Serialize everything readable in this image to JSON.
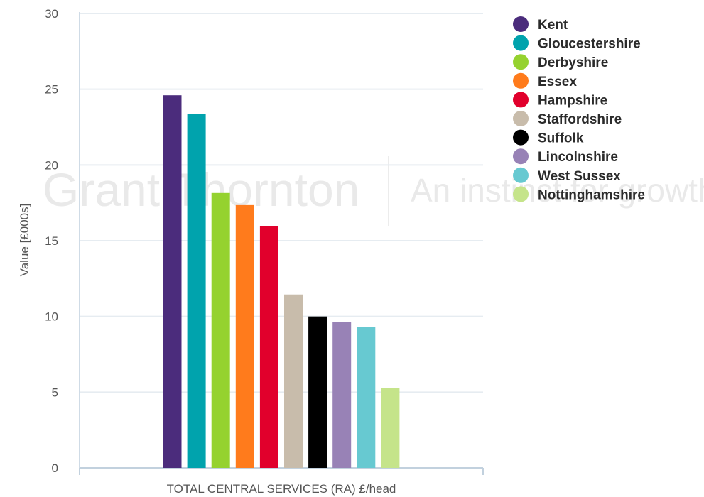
{
  "watermark": {
    "brand": "Grant Thornton",
    "tagline": "An instinct for growth"
  },
  "chart_data": {
    "type": "bar",
    "title": "",
    "xlabel": "TOTAL CENTRAL SERVICES (RA) £/head",
    "ylabel": "Value [£000s]",
    "ylim": [
      0,
      30
    ],
    "yticks": [
      0,
      5,
      10,
      15,
      20,
      25,
      30
    ],
    "grid": true,
    "legend_position": "right",
    "series": [
      {
        "name": "Kent",
        "value": 24.6,
        "color": "#4b2c7c"
      },
      {
        "name": "Gloucestershire",
        "value": 23.35,
        "color": "#00a3ad"
      },
      {
        "name": "Derbyshire",
        "value": 18.15,
        "color": "#95d22f"
      },
      {
        "name": "Essex",
        "value": 17.35,
        "color": "#ff7b1c"
      },
      {
        "name": "Hampshire",
        "value": 15.95,
        "color": "#e1002c"
      },
      {
        "name": "Staffordshire",
        "value": 11.45,
        "color": "#c8bcab"
      },
      {
        "name": "Suffolk",
        "value": 10.0,
        "color": "#000000"
      },
      {
        "name": "Lincolnshire",
        "value": 9.65,
        "color": "#9882b6"
      },
      {
        "name": "West Sussex",
        "value": 9.3,
        "color": "#67c9d1"
      },
      {
        "name": "Nottinghamshire",
        "value": 5.25,
        "color": "#c5e48a"
      }
    ]
  }
}
